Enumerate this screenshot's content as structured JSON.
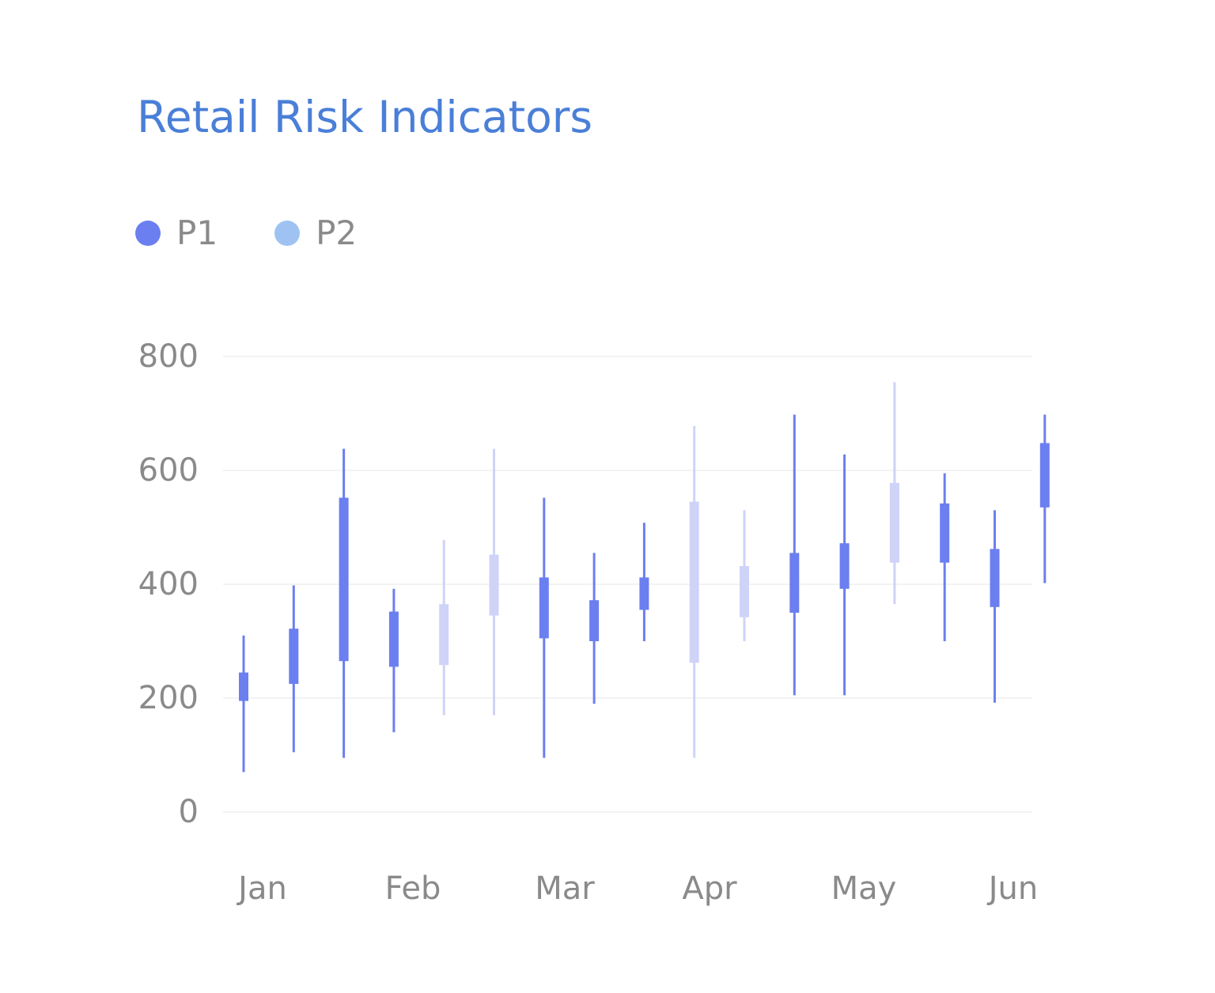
{
  "chart_data": {
    "type": "candlestick",
    "title": "Retail Risk Indicators",
    "xlabel": "",
    "ylabel": "",
    "ylim": [
      0,
      800
    ],
    "y_ticks": [
      "0",
      "200",
      "400",
      "600",
      "800"
    ],
    "x_tick_labels": [
      "Jan",
      "Feb",
      "Mar",
      "Apr",
      "May",
      "Jun"
    ],
    "grid": true,
    "legend_position": "top-left",
    "series": [
      {
        "name": "P1",
        "color": "#6b7ff0"
      },
      {
        "name": "P2",
        "color": "#9ec3f2",
        "mark_color": "#cfd3f8"
      }
    ],
    "candles": [
      {
        "series": "P1",
        "low": 70,
        "open": 195,
        "close": 245,
        "high": 310
      },
      {
        "series": "P1",
        "low": 105,
        "open": 225,
        "close": 322,
        "high": 398
      },
      {
        "series": "P1",
        "low": 95,
        "open": 265,
        "close": 552,
        "high": 638
      },
      {
        "series": "P1",
        "low": 140,
        "open": 255,
        "close": 352,
        "high": 392
      },
      {
        "series": "P2",
        "low": 170,
        "open": 258,
        "close": 365,
        "high": 478
      },
      {
        "series": "P2",
        "low": 170,
        "open": 345,
        "close": 452,
        "high": 638
      },
      {
        "series": "P1",
        "low": 95,
        "open": 305,
        "close": 412,
        "high": 552
      },
      {
        "series": "P1",
        "low": 190,
        "open": 300,
        "close": 372,
        "high": 455
      },
      {
        "series": "P1",
        "low": 300,
        "open": 355,
        "close": 412,
        "high": 508
      },
      {
        "series": "P2",
        "low": 95,
        "open": 262,
        "close": 545,
        "high": 678
      },
      {
        "series": "P2",
        "low": 300,
        "open": 342,
        "close": 432,
        "high": 530
      },
      {
        "series": "P1",
        "low": 205,
        "open": 350,
        "close": 455,
        "high": 698
      },
      {
        "series": "P1",
        "low": 205,
        "open": 392,
        "close": 472,
        "high": 628
      },
      {
        "series": "P2",
        "low": 365,
        "open": 438,
        "close": 578,
        "high": 755
      },
      {
        "series": "P1",
        "low": 300,
        "open": 438,
        "close": 542,
        "high": 595
      },
      {
        "series": "P1",
        "low": 192,
        "open": 360,
        "close": 462,
        "high": 530
      },
      {
        "series": "P1",
        "low": 402,
        "open": 535,
        "close": 648,
        "high": 698
      }
    ]
  }
}
